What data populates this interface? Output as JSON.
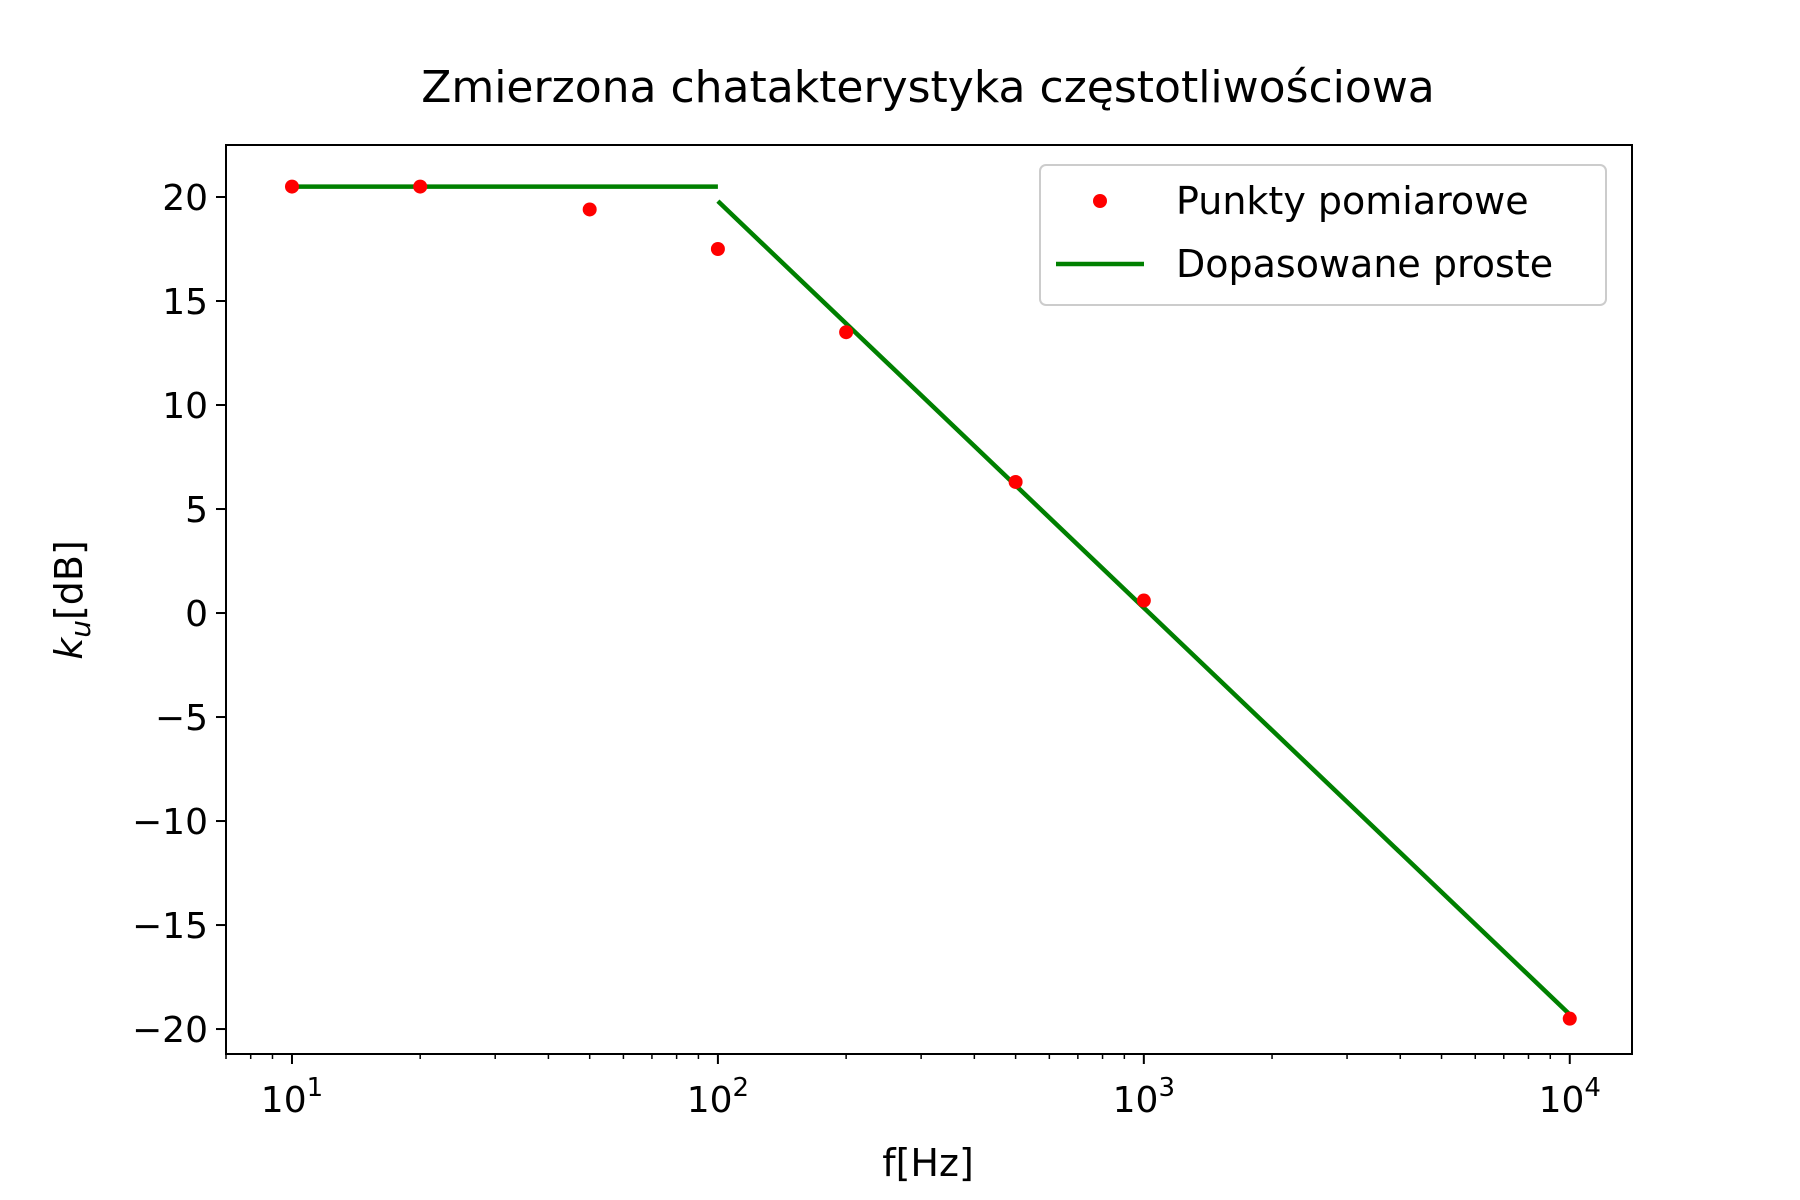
{
  "chart_data": {
    "type": "scatter",
    "title": "Zmierzona chatakterystyka częstotliwościowa",
    "xlabel": "f[Hz]",
    "ylabel": {
      "base": "k",
      "subscript": "u",
      "suffix": "[dB]"
    },
    "x_scale": "log",
    "xlim": [
      7,
      14000
    ],
    "ylim": [
      -21.2,
      22.5
    ],
    "x_ticks": [
      {
        "value": 10,
        "label_base": "10",
        "label_exp": "1"
      },
      {
        "value": 100,
        "label_base": "10",
        "label_exp": "2"
      },
      {
        "value": 1000,
        "label_base": "10",
        "label_exp": "3"
      },
      {
        "value": 10000,
        "label_base": "10",
        "label_exp": "4"
      }
    ],
    "y_ticks": [
      {
        "value": 20,
        "label": "20"
      },
      {
        "value": 15,
        "label": "15"
      },
      {
        "value": 10,
        "label": "10"
      },
      {
        "value": 5,
        "label": "5"
      },
      {
        "value": 0,
        "label": "0"
      },
      {
        "value": -5,
        "label": "−5"
      },
      {
        "value": -10,
        "label": "−10"
      },
      {
        "value": -15,
        "label": "−15"
      },
      {
        "value": -20,
        "label": "−20"
      }
    ],
    "grid": false,
    "legend_position": "top-right",
    "series": [
      {
        "name": "Punkty pomiarowe",
        "kind": "points",
        "color": "#ff0000",
        "x": [
          10,
          20,
          50,
          100,
          200,
          500,
          1000,
          10000
        ],
        "y": [
          20.5,
          20.5,
          19.4,
          17.5,
          13.5,
          6.3,
          0.6,
          -19.5
        ]
      },
      {
        "name": "Dopasowane proste",
        "kind": "lines",
        "color": "#008000",
        "segments": [
          {
            "x": [
              10,
              100
            ],
            "y": [
              20.5,
              20.5
            ]
          },
          {
            "x": [
              100,
              10000
            ],
            "y": [
              19.8,
              -19.3
            ]
          }
        ]
      }
    ]
  }
}
